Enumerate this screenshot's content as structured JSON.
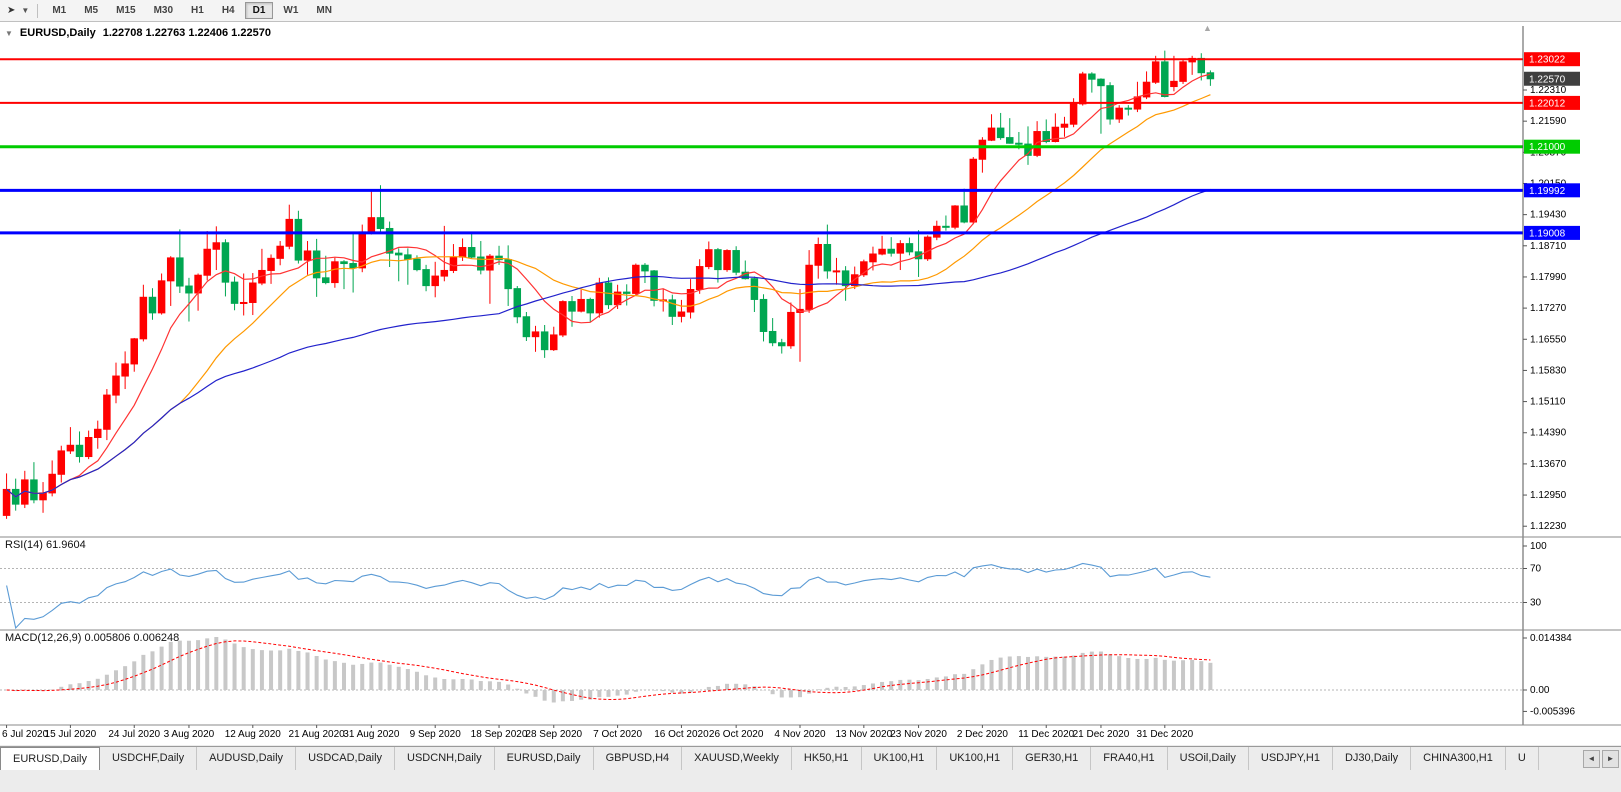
{
  "toolbar": {
    "timeframes": [
      "M1",
      "M5",
      "M15",
      "M30",
      "H1",
      "H4",
      "D1",
      "W1",
      "MN"
    ],
    "active_timeframe": "D1"
  },
  "icons": {
    "cursor": "➤",
    "dropdown": "▼",
    "collapse": "▼",
    "scroll_left": "◄",
    "scroll_right": "►",
    "shift_marker": "▲"
  },
  "header": {
    "symbol": "EURUSD,Daily",
    "ohlc": "1.22708 1.22763 1.22406 1.22570"
  },
  "indicators": {
    "rsi_label": "RSI(14) 61.9604",
    "macd_label": "MACD(12,26,9) 0.005806 0.006248"
  },
  "axis": {
    "price_ticks": [
      "1.22310",
      "1.21590",
      "1.20870",
      "1.20150",
      "1.19430",
      "1.18710",
      "1.17990",
      "1.17270",
      "1.16550",
      "1.15830",
      "1.15110",
      "1.14390",
      "1.13670",
      "1.12950",
      "1.12230"
    ],
    "rsi_ticks": [
      "100",
      "70",
      "30"
    ],
    "macd_ticks": [
      "0.014384",
      "0.00",
      "-0.005396"
    ]
  },
  "chart_data": {
    "type": "candlestick",
    "symbol": "EURUSD",
    "timeframe": "Daily",
    "ylim": [
      1.1205,
      1.2335
    ],
    "colors": {
      "up": "#ff0000",
      "down": "#00a651",
      "background": "#ffffff"
    },
    "hlines": [
      {
        "price": 1.23022,
        "label": "1.23022",
        "color": "#ff0000",
        "width": 2
      },
      {
        "price": 1.22012,
        "label": "1.22012",
        "color": "#ff0000",
        "width": 2
      },
      {
        "price": 1.21,
        "label": "1.21000",
        "color": "#00cc00",
        "width": 3
      },
      {
        "price": 1.19992,
        "label": "1.19992",
        "color": "#0000ff",
        "width": 3
      },
      {
        "price": 1.19008,
        "label": "1.19008",
        "color": "#0000ff",
        "width": 3
      }
    ],
    "current_price": {
      "price": 1.2257,
      "label": "1.22570",
      "box_color": "#3f3f3f"
    },
    "ma": [
      {
        "name": "ma-fast",
        "period": 8,
        "color": "#ff3333"
      },
      {
        "name": "ma-mid",
        "period": 20,
        "color": "#ff9900"
      },
      {
        "name": "ma-slow",
        "period": 55,
        "color": "#2222cc"
      }
    ],
    "rsi": {
      "period": 14,
      "value": 61.9604,
      "levels": [
        70,
        30
      ],
      "color": "#5b9bd5"
    },
    "macd": {
      "fast": 12,
      "slow": 26,
      "signal": 9,
      "macd_value": 0.005806,
      "signal_value": 0.006248,
      "hist_color": "#c8c8c8",
      "signal_color": "#ff0000"
    },
    "date_labels": [
      {
        "label": "6 Jul 2020",
        "index": 0
      },
      {
        "label": "15 Jul 2020",
        "index": 7
      },
      {
        "label": "24 Jul 2020",
        "index": 14
      },
      {
        "label": "3 Aug 2020",
        "index": 20
      },
      {
        "label": "12 Aug 2020",
        "index": 27
      },
      {
        "label": "21 Aug 2020",
        "index": 34
      },
      {
        "label": "31 Aug 2020",
        "index": 40
      },
      {
        "label": "9 Sep 2020",
        "index": 47
      },
      {
        "label": "18 Sep 2020",
        "index": 54
      },
      {
        "label": "28 Sep 2020",
        "index": 60
      },
      {
        "label": "7 Oct 2020",
        "index": 67
      },
      {
        "label": "16 Oct 2020",
        "index": 74
      },
      {
        "label": "26 Oct 2020",
        "index": 80
      },
      {
        "label": "4 Nov 2020",
        "index": 87
      },
      {
        "label": "13 Nov 2020",
        "index": 94
      },
      {
        "label": "23 Nov 2020",
        "index": 100
      },
      {
        "label": "2 Dec 2020",
        "index": 107
      },
      {
        "label": "11 Dec 2020",
        "index": 114
      },
      {
        "label": "21 Dec 2020",
        "index": 120
      },
      {
        "label": "31 Dec 2020",
        "index": 127
      }
    ],
    "candles_ohlc": [
      [
        1.1248,
        1.1345,
        1.124,
        1.1308
      ],
      [
        1.1308,
        1.1333,
        1.1259,
        1.1274
      ],
      [
        1.1274,
        1.1351,
        1.1265,
        1.133
      ],
      [
        1.133,
        1.1371,
        1.1276,
        1.1284
      ],
      [
        1.1284,
        1.1325,
        1.1254,
        1.13
      ],
      [
        1.13,
        1.1375,
        1.1292,
        1.1343
      ],
      [
        1.1343,
        1.1409,
        1.1324,
        1.1397
      ],
      [
        1.1397,
        1.1452,
        1.139,
        1.141
      ],
      [
        1.141,
        1.1442,
        1.137,
        1.1384
      ],
      [
        1.1384,
        1.1444,
        1.1378,
        1.1428
      ],
      [
        1.1428,
        1.1467,
        1.1402,
        1.1447
      ],
      [
        1.1447,
        1.154,
        1.1422,
        1.1526
      ],
      [
        1.1526,
        1.1601,
        1.1507,
        1.157
      ],
      [
        1.157,
        1.1627,
        1.154,
        1.1598
      ],
      [
        1.1598,
        1.1658,
        1.158,
        1.1656
      ],
      [
        1.1656,
        1.1781,
        1.165,
        1.1752
      ],
      [
        1.1752,
        1.1773,
        1.17,
        1.1716
      ],
      [
        1.1716,
        1.1807,
        1.1712,
        1.179
      ],
      [
        1.179,
        1.1847,
        1.1732,
        1.1843
      ],
      [
        1.1843,
        1.1909,
        1.1762,
        1.1778
      ],
      [
        1.1778,
        1.1797,
        1.1696,
        1.1762
      ],
      [
        1.1762,
        1.1807,
        1.1721,
        1.1803
      ],
      [
        1.1803,
        1.1905,
        1.1791,
        1.1863
      ],
      [
        1.1863,
        1.1916,
        1.1815,
        1.1878
      ],
      [
        1.1878,
        1.1886,
        1.1754,
        1.1787
      ],
      [
        1.1787,
        1.18,
        1.1722,
        1.1738
      ],
      [
        1.1738,
        1.1807,
        1.171,
        1.174
      ],
      [
        1.174,
        1.1808,
        1.1711,
        1.1785
      ],
      [
        1.1785,
        1.1864,
        1.178,
        1.1814
      ],
      [
        1.1814,
        1.1851,
        1.1783,
        1.1842
      ],
      [
        1.1842,
        1.1882,
        1.1826,
        1.187
      ],
      [
        1.187,
        1.1966,
        1.1863,
        1.1932
      ],
      [
        1.1932,
        1.1952,
        1.183,
        1.1838
      ],
      [
        1.1838,
        1.1882,
        1.1804,
        1.1859
      ],
      [
        1.1859,
        1.1887,
        1.1753,
        1.1797
      ],
      [
        1.1797,
        1.1848,
        1.1782,
        1.1786
      ],
      [
        1.1786,
        1.1843,
        1.1774,
        1.1834
      ],
      [
        1.1834,
        1.1838,
        1.1771,
        1.183
      ],
      [
        1.183,
        1.19,
        1.1763,
        1.182
      ],
      [
        1.182,
        1.192,
        1.181,
        1.1903
      ],
      [
        1.1903,
        1.1997,
        1.1897,
        1.1936
      ],
      [
        1.1936,
        1.2011,
        1.1901,
        1.1911
      ],
      [
        1.1911,
        1.1927,
        1.1822,
        1.1854
      ],
      [
        1.1854,
        1.1865,
        1.1789,
        1.185
      ],
      [
        1.185,
        1.1865,
        1.1781,
        1.184
      ],
      [
        1.184,
        1.1849,
        1.1812,
        1.1816
      ],
      [
        1.1816,
        1.1827,
        1.1766,
        1.1779
      ],
      [
        1.1779,
        1.1834,
        1.1752,
        1.1801
      ],
      [
        1.1801,
        1.1917,
        1.1789,
        1.1814
      ],
      [
        1.1814,
        1.1875,
        1.1808,
        1.1845
      ],
      [
        1.1845,
        1.1888,
        1.1836,
        1.1867
      ],
      [
        1.1867,
        1.19,
        1.1842,
        1.1845
      ],
      [
        1.1845,
        1.1882,
        1.1805,
        1.1815
      ],
      [
        1.1815,
        1.1852,
        1.1737,
        1.1847
      ],
      [
        1.1847,
        1.1871,
        1.1827,
        1.1839
      ],
      [
        1.1839,
        1.1872,
        1.1732,
        1.1772
      ],
      [
        1.1772,
        1.1778,
        1.1692,
        1.1707
      ],
      [
        1.1707,
        1.1718,
        1.1651,
        1.1661
      ],
      [
        1.1661,
        1.1686,
        1.1626,
        1.1672
      ],
      [
        1.1672,
        1.1688,
        1.1612,
        1.1631
      ],
      [
        1.1631,
        1.1684,
        1.1628,
        1.1665
      ],
      [
        1.1665,
        1.1745,
        1.166,
        1.1742
      ],
      [
        1.1742,
        1.1755,
        1.1684,
        1.172
      ],
      [
        1.172,
        1.1769,
        1.1717,
        1.1747
      ],
      [
        1.1747,
        1.1751,
        1.1695,
        1.1716
      ],
      [
        1.1716,
        1.1797,
        1.1705,
        1.1785
      ],
      [
        1.1785,
        1.1798,
        1.1725,
        1.1735
      ],
      [
        1.1735,
        1.1781,
        1.1725,
        1.1764
      ],
      [
        1.1764,
        1.1782,
        1.1733,
        1.1761
      ],
      [
        1.1761,
        1.183,
        1.1756,
        1.1826
      ],
      [
        1.1826,
        1.1831,
        1.1785,
        1.1813
      ],
      [
        1.1813,
        1.1815,
        1.1731,
        1.1745
      ],
      [
        1.1745,
        1.1772,
        1.1719,
        1.1746
      ],
      [
        1.1746,
        1.1758,
        1.1688,
        1.1708
      ],
      [
        1.1708,
        1.1746,
        1.1694,
        1.1718
      ],
      [
        1.1718,
        1.1794,
        1.1703,
        1.177
      ],
      [
        1.177,
        1.184,
        1.176,
        1.1823
      ],
      [
        1.1823,
        1.1881,
        1.1817,
        1.1862
      ],
      [
        1.1862,
        1.1866,
        1.1786,
        1.1816
      ],
      [
        1.1816,
        1.1863,
        1.1811,
        1.186
      ],
      [
        1.186,
        1.187,
        1.1803,
        1.181
      ],
      [
        1.181,
        1.1837,
        1.1793,
        1.1795
      ],
      [
        1.1795,
        1.18,
        1.1718,
        1.1747
      ],
      [
        1.1747,
        1.1759,
        1.165,
        1.1673
      ],
      [
        1.1673,
        1.1704,
        1.1639,
        1.1647
      ],
      [
        1.1647,
        1.1656,
        1.1622,
        1.164
      ],
      [
        1.164,
        1.174,
        1.1633,
        1.1717
      ],
      [
        1.1717,
        1.1771,
        1.1603,
        1.1724
      ],
      [
        1.1724,
        1.1861,
        1.1716,
        1.1826
      ],
      [
        1.1826,
        1.189,
        1.1795,
        1.1874
      ],
      [
        1.1874,
        1.192,
        1.1795,
        1.1813
      ],
      [
        1.1813,
        1.1843,
        1.1781,
        1.1813
      ],
      [
        1.1813,
        1.1824,
        1.1744,
        1.1779
      ],
      [
        1.1779,
        1.1823,
        1.1771,
        1.1804
      ],
      [
        1.1804,
        1.1839,
        1.1799,
        1.1834
      ],
      [
        1.1834,
        1.1869,
        1.1814,
        1.1852
      ],
      [
        1.1852,
        1.1894,
        1.1849,
        1.1863
      ],
      [
        1.1863,
        1.1891,
        1.1846,
        1.1854
      ],
      [
        1.1854,
        1.1884,
        1.1815,
        1.1876
      ],
      [
        1.1876,
        1.189,
        1.1849,
        1.1857
      ],
      [
        1.1857,
        1.1907,
        1.1799,
        1.1841
      ],
      [
        1.1841,
        1.1895,
        1.1836,
        1.1891
      ],
      [
        1.1891,
        1.1929,
        1.1884,
        1.1916
      ],
      [
        1.1916,
        1.1941,
        1.1906,
        1.1914
      ],
      [
        1.1914,
        1.1965,
        1.1909,
        1.1963
      ],
      [
        1.1963,
        1.2003,
        1.1923,
        1.1926
      ],
      [
        1.1926,
        1.2076,
        1.1921,
        1.2071
      ],
      [
        1.2071,
        1.2122,
        1.204,
        1.2115
      ],
      [
        1.2115,
        1.2175,
        1.2113,
        1.2143
      ],
      [
        1.2143,
        1.2178,
        1.2116,
        1.2121
      ],
      [
        1.2121,
        1.2166,
        1.2107,
        1.2108
      ],
      [
        1.2108,
        1.2134,
        1.2094,
        1.2106
      ],
      [
        1.2106,
        1.2147,
        1.2058,
        1.208
      ],
      [
        1.208,
        1.2159,
        1.2076,
        1.2135
      ],
      [
        1.2135,
        1.2163,
        1.2108,
        1.2112
      ],
      [
        1.2112,
        1.2177,
        1.211,
        1.2145
      ],
      [
        1.2145,
        1.2169,
        1.2123,
        1.2152
      ],
      [
        1.2152,
        1.2212,
        1.2145,
        1.2199
      ],
      [
        1.2199,
        1.2273,
        1.2195,
        1.2268
      ],
      [
        1.2268,
        1.2272,
        1.2225,
        1.2256
      ],
      [
        1.2256,
        1.2258,
        1.213,
        1.2241
      ],
      [
        1.2241,
        1.2249,
        1.2151,
        1.2164
      ],
      [
        1.2164,
        1.2196,
        1.2155,
        1.2189
      ],
      [
        1.2189,
        1.2196,
        1.2172,
        1.2187
      ],
      [
        1.2187,
        1.225,
        1.218,
        1.2215
      ],
      [
        1.2215,
        1.2274,
        1.221,
        1.2249
      ],
      [
        1.2249,
        1.231,
        1.2245,
        1.2296
      ],
      [
        1.2296,
        1.2322,
        1.2214,
        1.2216
      ],
      [
        1.2239,
        1.231,
        1.2228,
        1.2251
      ],
      [
        1.2251,
        1.2303,
        1.2245,
        1.2296
      ],
      [
        1.2296,
        1.231,
        1.2266,
        1.2304
      ],
      [
        1.2304,
        1.2316,
        1.2253,
        1.2271
      ],
      [
        1.22708,
        1.22763,
        1.22406,
        1.2257
      ]
    ]
  },
  "tabs": {
    "active_index": 0,
    "items": [
      "EURUSD,Daily",
      "USDCHF,Daily",
      "AUDUSD,Daily",
      "USDCAD,Daily",
      "USDCNH,Daily",
      "EURUSD,Daily",
      "GBPUSD,H4",
      "XAUUSD,Weekly",
      "HK50,H1",
      "UK100,H1",
      "UK100,H1",
      "GER30,H1",
      "FRA40,H1",
      "USOil,Daily",
      "USDJPY,H1",
      "DJ30,Daily",
      "CHINA300,H1",
      "U"
    ]
  }
}
